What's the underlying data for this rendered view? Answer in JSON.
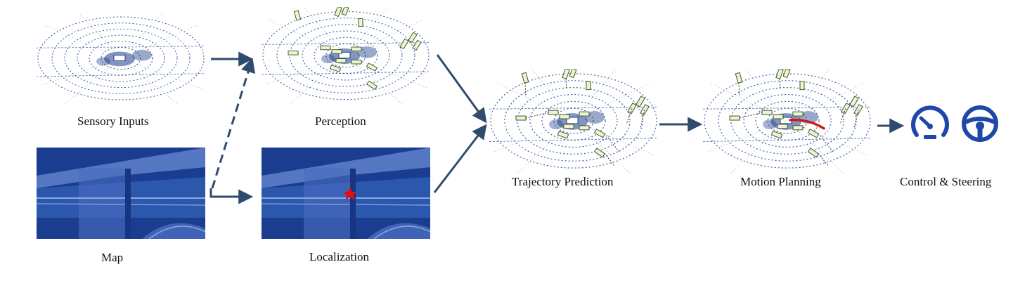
{
  "labels": {
    "sensory_inputs": "Sensory Inputs",
    "perception": "Perception",
    "map": "Map",
    "localization": "Localization",
    "trajectory_prediction": "Trajectory Prediction",
    "motion_planning": "Motion Planning",
    "control_steering": "Control & Steering"
  },
  "colors": {
    "arrow": "#2f4b6e",
    "lidar": "#2a4f9e",
    "map_dark": "#1a3d8f",
    "map_light": "#5576c0",
    "box": "#3d5a1f",
    "planned_path": "#d01818",
    "ego_marker": "#e01010",
    "control_icon": "#1f47a8"
  },
  "icons": {
    "speedometer": "speedometer-icon",
    "steering_wheel": "steering-wheel-icon",
    "ego_marker": "star-icon"
  }
}
